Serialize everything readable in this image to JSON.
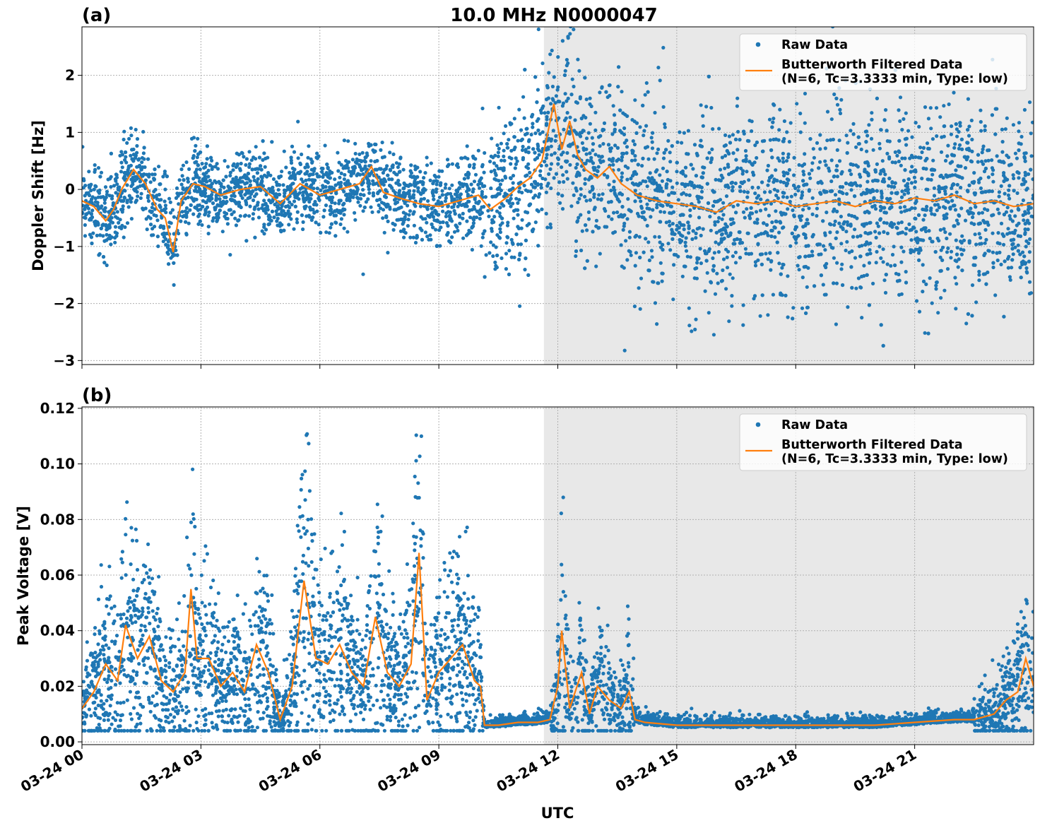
{
  "figure": {
    "title": "10.0 MHz N0000047",
    "xlabel": "UTC",
    "x_ticks": [
      "03-24 00",
      "03-24 03",
      "03-24 06",
      "03-24 09",
      "03-24 12",
      "03-24 15",
      "03-24 18",
      "03-24 21"
    ],
    "night_shading": {
      "start_hour": 11.65,
      "end_hour": 24.0,
      "color": "#e8e8e8"
    },
    "colors": {
      "raw": "#1f77b4",
      "filtered": "#ff7f0e",
      "grid": "#b0b0b0"
    }
  },
  "chart_data": [
    {
      "type": "scatter",
      "panel_label": "(a)",
      "title": "10.0 MHz N0000047",
      "xlabel": "",
      "ylabel": "Doppler Shift [Hz]",
      "xlim_hours": [
        0,
        24
      ],
      "ylim": [
        -3.07,
        2.85
      ],
      "y_ticks": [
        2,
        1,
        0,
        -1,
        -2,
        -3
      ],
      "y_tick_labels": [
        "2",
        "1",
        "0",
        "−1",
        "−2",
        "−3"
      ],
      "grid": true,
      "legend_position": "upper right",
      "legend": [
        "Raw Data",
        "Butterworth Filtered Data\n(N=6, Tc=3.3333 min, Type: low)"
      ],
      "series": [
        {
          "name": "Raw Data",
          "style": "points",
          "color": "#1f77b4"
        },
        {
          "name": "Butterworth Filtered Data (N=6, Tc=3.3333 min, Type: low)",
          "style": "line",
          "color": "#ff7f0e",
          "x_hours": [
            0,
            0.3,
            0.6,
            0.8,
            1.0,
            1.3,
            1.6,
            1.9,
            2.1,
            2.3,
            2.5,
            2.8,
            3.1,
            3.5,
            4.0,
            4.5,
            5.0,
            5.5,
            6.0,
            6.5,
            7.0,
            7.3,
            7.6,
            8.0,
            8.5,
            9.0,
            9.5,
            10.0,
            10.3,
            10.7,
            11.0,
            11.3,
            11.6,
            11.9,
            12.1,
            12.3,
            12.5,
            12.7,
            13.0,
            13.3,
            13.6,
            14.0,
            14.5,
            15.0,
            15.5,
            16.0,
            16.5,
            17.0,
            17.5,
            18.0,
            18.5,
            19.0,
            19.5,
            20.0,
            20.5,
            21.0,
            21.5,
            22.0,
            22.5,
            23.0,
            23.5,
            24.0
          ],
          "values": [
            -0.2,
            -0.3,
            -0.55,
            -0.35,
            0.0,
            0.35,
            0.1,
            -0.35,
            -0.5,
            -1.1,
            -0.2,
            0.1,
            0.05,
            -0.1,
            0.0,
            0.05,
            -0.25,
            0.1,
            -0.1,
            0.0,
            0.1,
            0.4,
            -0.05,
            -0.15,
            -0.25,
            -0.3,
            -0.2,
            -0.1,
            -0.35,
            -0.15,
            0.05,
            0.2,
            0.5,
            1.5,
            0.7,
            1.2,
            0.6,
            0.35,
            0.2,
            0.4,
            0.1,
            -0.1,
            -0.2,
            -0.25,
            -0.3,
            -0.4,
            -0.2,
            -0.25,
            -0.2,
            -0.3,
            -0.25,
            -0.2,
            -0.3,
            -0.2,
            -0.25,
            -0.15,
            -0.2,
            -0.1,
            -0.25,
            -0.2,
            -0.3,
            -0.25
          ]
        }
      ]
    },
    {
      "type": "scatter",
      "panel_label": "(b)",
      "title": "",
      "xlabel": "UTC",
      "ylabel": "Peak Voltage [V]",
      "xlim_hours": [
        0,
        24
      ],
      "ylim": [
        -0.001,
        0.1205
      ],
      "y_ticks": [
        0.12,
        0.1,
        0.08,
        0.06,
        0.04,
        0.02,
        0.0
      ],
      "y_tick_labels": [
        "0.12",
        "0.10",
        "0.08",
        "0.06",
        "0.04",
        "0.02",
        "0.00"
      ],
      "grid": true,
      "legend_position": "upper right",
      "legend": [
        "Raw Data",
        "Butterworth Filtered Data\n(N=6, Tc=3.3333 min, Type: low)"
      ],
      "series": [
        {
          "name": "Raw Data",
          "style": "points",
          "color": "#1f77b4"
        },
        {
          "name": "Butterworth Filtered Data (N=6, Tc=3.3333 min, Type: low)",
          "style": "line",
          "color": "#ff7f0e",
          "x_hours": [
            0,
            0.3,
            0.6,
            0.9,
            1.1,
            1.4,
            1.7,
            2.0,
            2.3,
            2.6,
            2.75,
            2.9,
            3.2,
            3.5,
            3.8,
            4.1,
            4.4,
            4.7,
            5.0,
            5.3,
            5.6,
            5.9,
            6.2,
            6.5,
            6.8,
            7.1,
            7.4,
            7.7,
            8.0,
            8.3,
            8.5,
            8.7,
            9.0,
            9.3,
            9.6,
            9.9,
            10.05,
            10.15,
            10.5,
            11.0,
            11.5,
            11.8,
            12.0,
            12.1,
            12.3,
            12.6,
            12.8,
            13.0,
            13.3,
            13.6,
            13.8,
            13.95,
            14.2,
            15.0,
            16.0,
            17.0,
            18.0,
            19.0,
            20.0,
            21.0,
            22.0,
            22.5,
            23.0,
            23.3,
            23.6,
            23.8,
            24.0
          ],
          "values": [
            0.012,
            0.018,
            0.028,
            0.022,
            0.042,
            0.03,
            0.038,
            0.022,
            0.018,
            0.025,
            0.055,
            0.03,
            0.03,
            0.02,
            0.025,
            0.018,
            0.035,
            0.025,
            0.008,
            0.02,
            0.058,
            0.03,
            0.028,
            0.035,
            0.025,
            0.02,
            0.045,
            0.025,
            0.02,
            0.028,
            0.068,
            0.015,
            0.025,
            0.03,
            0.035,
            0.022,
            0.02,
            0.006,
            0.006,
            0.007,
            0.007,
            0.008,
            0.02,
            0.04,
            0.012,
            0.025,
            0.01,
            0.02,
            0.015,
            0.012,
            0.018,
            0.008,
            0.007,
            0.006,
            0.006,
            0.006,
            0.006,
            0.006,
            0.006,
            0.007,
            0.008,
            0.008,
            0.01,
            0.015,
            0.018,
            0.03,
            0.02
          ]
        }
      ]
    }
  ]
}
